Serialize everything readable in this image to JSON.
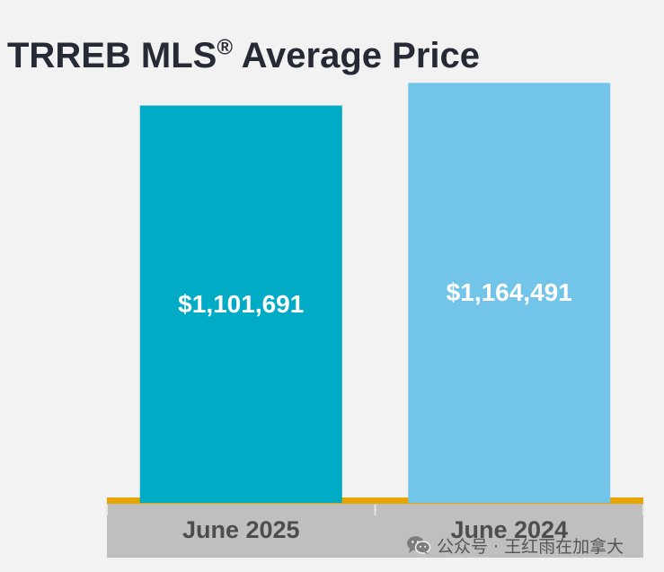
{
  "title": {
    "text": "TRREB MLS",
    "mark": "®",
    "rest": " Average Price"
  },
  "chart_data": {
    "type": "bar",
    "title": "TRREB MLS® Average Price",
    "categories": [
      "June 2025",
      "June 2024"
    ],
    "values": [
      1101691,
      1164491
    ],
    "data_labels": [
      "$1,101,691",
      "$1,164,491"
    ],
    "xlabel": "",
    "ylabel": "",
    "ylim": [
      0,
      1250000
    ],
    "grid": false,
    "legend": "none",
    "colors": {
      "bars": [
        "#00abc6",
        "#72c4e8"
      ],
      "label_text": "#ffffff",
      "axis_band": "#bfbfbf",
      "axis_line": "#e8a400",
      "tick_label": "#4d4d4d"
    }
  },
  "watermark": {
    "text": "公众号 · 王红雨在加拿大",
    "icon": "wechat-icon"
  }
}
